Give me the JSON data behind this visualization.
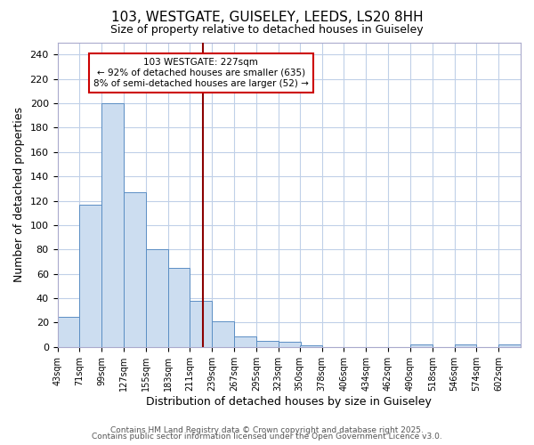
{
  "title1": "103, WESTGATE, GUISELEY, LEEDS, LS20 8HH",
  "title2": "Size of property relative to detached houses in Guiseley",
  "xlabel": "Distribution of detached houses by size in Guiseley",
  "ylabel": "Number of detached properties",
  "bin_edges": [
    43,
    71,
    99,
    127,
    155,
    183,
    211,
    239,
    267,
    295,
    323,
    350,
    378,
    406,
    434,
    462,
    490,
    518,
    546,
    574,
    602
  ],
  "bar_heights": [
    25,
    117,
    200,
    127,
    80,
    65,
    38,
    21,
    9,
    5,
    4,
    1,
    0,
    0,
    0,
    0,
    2,
    0,
    2,
    0,
    2
  ],
  "bar_color": "#ccddf0",
  "bar_edge_color": "#5b8ec4",
  "vline_x": 227,
  "vline_color": "#8b0000",
  "annotation_text": "103 WESTGATE: 227sqm\n← 92% of detached houses are smaller (635)\n8% of semi-detached houses are larger (52) →",
  "annotation_box_color": "white",
  "annotation_box_edge": "#cc0000",
  "ylim": [
    0,
    250
  ],
  "yticks": [
    0,
    20,
    40,
    60,
    80,
    100,
    120,
    140,
    160,
    180,
    200,
    220,
    240
  ],
  "background_color": "#ffffff",
  "plot_bg_color": "#ffffff",
  "grid_color": "#c0d0e8",
  "footer1": "Contains HM Land Registry data © Crown copyright and database right 2025.",
  "footer2": "Contains public sector information licensed under the Open Government Licence v3.0."
}
